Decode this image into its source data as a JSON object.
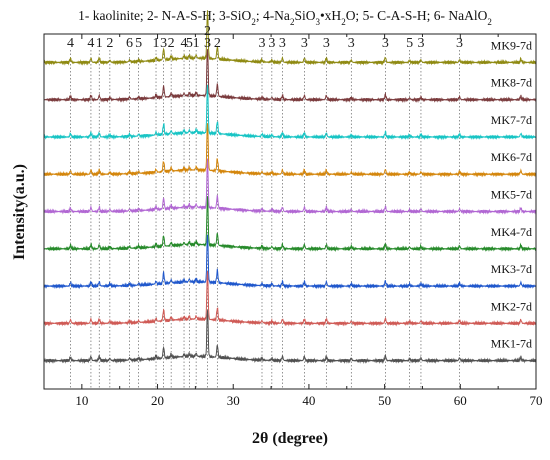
{
  "chart_data": {
    "type": "line",
    "legend_text": "1- kaolinite; 2- N-A-S-H; 3-SiO₂; 4-Na₂SiO₃•xH₂O; 5- C-A-S-H; 6- NaAlO₂",
    "legend_items": [
      {
        "number": "1",
        "phase": "kaolinite"
      },
      {
        "number": "2",
        "phase": "N-A-S-H"
      },
      {
        "number": "3",
        "phase": "SiO₂"
      },
      {
        "number": "4",
        "phase": "Na₂SiO₃•xH₂O"
      },
      {
        "number": "5",
        "phase": "C-A-S-H"
      },
      {
        "number": "6",
        "phase": "NaAlO₂"
      }
    ],
    "xlabel": "2θ (degree)",
    "ylabel": "Intensity(a.u.)",
    "xlim": [
      5,
      70
    ],
    "ylim": [
      0,
      10
    ],
    "x_ticks": [
      10,
      20,
      30,
      40,
      50,
      60,
      70
    ],
    "x_tick_labels": [
      "10",
      "20",
      "30",
      "40",
      "50",
      "60",
      "70"
    ],
    "y_ticks_labeled": false,
    "grid": false,
    "series": [
      {
        "name": "MK9-7d",
        "color": "#8f8a12",
        "offset": 9.2
      },
      {
        "name": "MK8-7d",
        "color": "#7a3a3c",
        "offset": 8.15
      },
      {
        "name": "MK7-7d",
        "color": "#17c4c4",
        "offset": 7.1
      },
      {
        "name": "MK6-7d",
        "color": "#d4860c",
        "offset": 6.05
      },
      {
        "name": "MK5-7d",
        "color": "#b167d3",
        "offset": 5.0
      },
      {
        "name": "MK4-7d",
        "color": "#268a2a",
        "offset": 3.95
      },
      {
        "name": "MK3-7d",
        "color": "#1f57cc",
        "offset": 2.9
      },
      {
        "name": "MK2-7d",
        "color": "#cf5a55",
        "offset": 1.85
      },
      {
        "name": "MK1-7d",
        "color": "#505050",
        "offset": 0.8
      }
    ],
    "peaks": [
      {
        "label": "4",
        "x": 8.5
      },
      {
        "label": "4",
        "x": 11.2
      },
      {
        "label": "1",
        "x": 12.3
      },
      {
        "label": "2",
        "x": 13.7
      },
      {
        "label": "6",
        "x": 16.3
      },
      {
        "label": "5",
        "x": 17.5
      },
      {
        "label": "1",
        "x": 19.8
      },
      {
        "label": "3",
        "x": 20.8
      },
      {
        "label": "2",
        "x": 21.8
      },
      {
        "label": "4",
        "x": 23.5
      },
      {
        "label": "5",
        "x": 24.2
      },
      {
        "label": "1",
        "x": 25.1
      },
      {
        "label": "3",
        "x": 26.6
      },
      {
        "label": "2",
        "x": 26.6
      },
      {
        "label": "2",
        "x": 27.9
      },
      {
        "label": "3",
        "x": 33.8
      },
      {
        "label": "3",
        "x": 35.1
      },
      {
        "label": "3",
        "x": 36.5
      },
      {
        "label": "3",
        "x": 39.4
      },
      {
        "label": "3",
        "x": 42.3
      },
      {
        "label": "3",
        "x": 45.6
      },
      {
        "label": "3",
        "x": 50.1
      },
      {
        "label": "5",
        "x": 53.3
      },
      {
        "label": "3",
        "x": 54.8
      },
      {
        "label": "3",
        "x": 59.9
      }
    ]
  }
}
